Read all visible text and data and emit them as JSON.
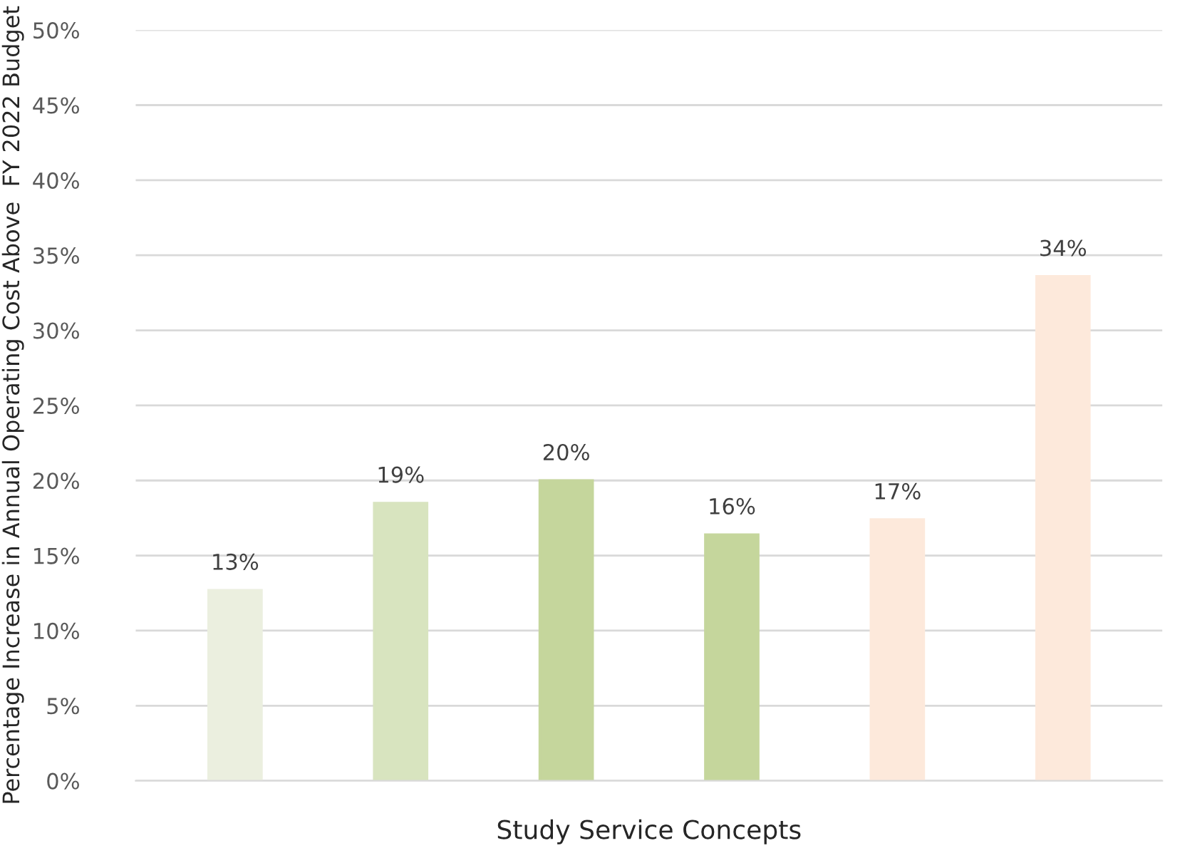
{
  "chart_data": {
    "type": "bar",
    "xlabel": "Study Service Concepts",
    "ylabel": "Percentage Increase in Annual Operating Cost Above  FY 2022 Budget",
    "categories": [
      null,
      null,
      null,
      null,
      null,
      null
    ],
    "values": [
      12.7,
      18.5,
      20.0,
      16.4,
      17.4,
      33.6
    ],
    "colors": [
      "#ebefdf",
      "#d8e4bf",
      "#c5d69c",
      "#c5d69c",
      "#fde9db",
      "#fde9db"
    ],
    "value_labels": [
      "13%",
      "19%",
      "20%",
      "16%",
      "17%",
      "34%"
    ],
    "ylim": [
      0,
      50
    ],
    "yticks": [
      {
        "value": 0,
        "label": "0%"
      },
      {
        "value": 5,
        "label": "5%"
      },
      {
        "value": 10,
        "label": "10%"
      },
      {
        "value": 15,
        "label": "15%"
      },
      {
        "value": 20,
        "label": "20%"
      },
      {
        "value": 25,
        "label": "25%"
      },
      {
        "value": 30,
        "label": "30%"
      },
      {
        "value": 35,
        "label": "35%"
      },
      {
        "value": 40,
        "label": "40%"
      },
      {
        "value": 45,
        "label": "45%"
      },
      {
        "value": 50,
        "label": "50%"
      }
    ],
    "grid": "y",
    "legend": false
  }
}
